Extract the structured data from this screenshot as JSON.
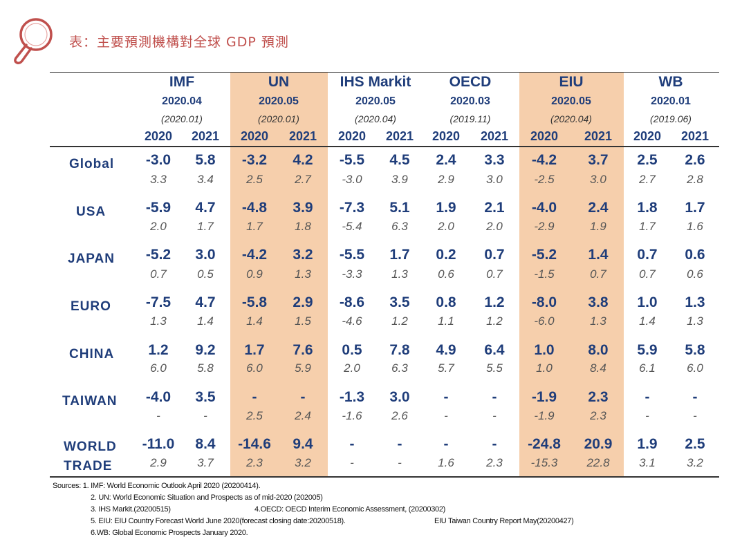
{
  "title": "表：主要預測機構對全球 GDP 預測",
  "colors": {
    "accent": "#c0504d",
    "shade": "#f6cfac",
    "text": "#1f3d7a"
  },
  "icon": "magnifier-icon",
  "orgs": [
    {
      "name": "IMF",
      "date": "2020.04",
      "prev": "(2020.01)"
    },
    {
      "name": "UN",
      "date": "2020.05",
      "prev": "(2020.01)"
    },
    {
      "name": "IHS Markit",
      "date": "2020.05",
      "prev": "(2020.04)"
    },
    {
      "name": "OECD",
      "date": "2020.03",
      "prev": "(2019.11)"
    },
    {
      "name": "EIU",
      "date": "2020.05",
      "prev": "(2020.04)"
    },
    {
      "name": "WB",
      "date": "2020.01",
      "prev": "(2019.06)"
    }
  ],
  "years": [
    "2020",
    "2021"
  ],
  "rows": [
    {
      "label": [
        "Global"
      ],
      "current": [
        "-3.0",
        "5.8",
        "-3.2",
        "4.2",
        "-5.5",
        "4.5",
        "2.4",
        "3.3",
        "-4.2",
        "3.7",
        "2.5",
        "2.6"
      ],
      "previous": [
        "3.3",
        "3.4",
        "2.5",
        "2.7",
        "-3.0",
        "3.9",
        "2.9",
        "3.0",
        "-2.5",
        "3.0",
        "2.7",
        "2.8"
      ]
    },
    {
      "label": [
        "USA"
      ],
      "current": [
        "-5.9",
        "4.7",
        "-4.8",
        "3.9",
        "-7.3",
        "5.1",
        "1.9",
        "2.1",
        "-4.0",
        "2.4",
        "1.8",
        "1.7"
      ],
      "previous": [
        "2.0",
        "1.7",
        "1.7",
        "1.8",
        "-5.4",
        "6.3",
        "2.0",
        "2.0",
        "-2.9",
        "1.9",
        "1.7",
        "1.6"
      ]
    },
    {
      "label": [
        "JAPAN"
      ],
      "current": [
        "-5.2",
        "3.0",
        "-4.2",
        "3.2",
        "-5.5",
        "1.7",
        "0.2",
        "0.7",
        "-5.2",
        "1.4",
        "0.7",
        "0.6"
      ],
      "previous": [
        "0.7",
        "0.5",
        "0.9",
        "1.3",
        "-3.3",
        "1.3",
        "0.6",
        "0.7",
        "-1.5",
        "0.7",
        "0.7",
        "0.6"
      ]
    },
    {
      "label": [
        "EURO"
      ],
      "current": [
        "-7.5",
        "4.7",
        "-5.8",
        "2.9",
        "-8.6",
        "3.5",
        "0.8",
        "1.2",
        "-8.0",
        "3.8",
        "1.0",
        "1.3"
      ],
      "previous": [
        "1.3",
        "1.4",
        "1.4",
        "1.5",
        "-4.6",
        "1.2",
        "1.1",
        "1.2",
        "-6.0",
        "1.3",
        "1.4",
        "1.3"
      ]
    },
    {
      "label": [
        "CHINA"
      ],
      "current": [
        "1.2",
        "9.2",
        "1.7",
        "7.6",
        "0.5",
        "7.8",
        "4.9",
        "6.4",
        "1.0",
        "8.0",
        "5.9",
        "5.8"
      ],
      "previous": [
        "6.0",
        "5.8",
        "6.0",
        "5.9",
        "2.0",
        "6.3",
        "5.7",
        "5.5",
        "1.0",
        "8.4",
        "6.1",
        "6.0"
      ]
    },
    {
      "label": [
        "TAIWAN"
      ],
      "current": [
        "-4.0",
        "3.5",
        "-",
        "-",
        "-1.3",
        "3.0",
        "-",
        "-",
        "-1.9",
        "2.3",
        "-",
        "-"
      ],
      "previous": [
        "-",
        "-",
        "2.5",
        "2.4",
        "-1.6",
        "2.6",
        "-",
        "-",
        "-1.9",
        "2.3",
        "-",
        "-"
      ]
    },
    {
      "label": [
        "WORLD",
        "TRADE"
      ],
      "current": [
        "-11.0",
        "8.4",
        "-14.6",
        "9.4",
        "-",
        "-",
        "-",
        "-",
        "-24.8",
        "20.9",
        "1.9",
        "2.5"
      ],
      "previous": [
        "2.9",
        "3.7",
        "2.3",
        "3.2",
        "-",
        "-",
        "1.6",
        "2.3",
        "-15.3",
        "22.8",
        "3.1",
        "3.2"
      ]
    }
  ],
  "sources": [
    "Sources: 1. IMF: World Economic Outlook April 2020 (20200414).",
    "2. UN: World Economic Situation and Prospects as of mid-2020 (202005)",
    "3. IHS Markit.(20200515)",
    "4.OECD: OECD Interim Economic Assessment, (20200302)",
    "5. EIU: EIU Country Forecast World June 2020(forecast closing date:20200518).",
    "EIU Taiwan Country Report May(20200427)",
    "6.WB: Global Economic Prospects January 2020."
  ]
}
